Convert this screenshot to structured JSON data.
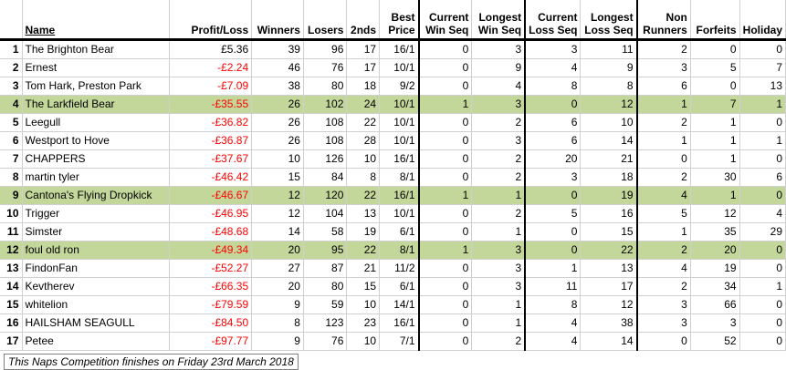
{
  "headers": {
    "rank": "",
    "name": "Name",
    "profit_loss": "Profit/Loss",
    "winners": "Winners",
    "losers": "Losers",
    "seconds": "2nds",
    "best_price": [
      "Best",
      "Price"
    ],
    "current_win_seq": [
      "Current",
      "Win Seq"
    ],
    "longest_win_seq": [
      "Longest",
      "Win Seq"
    ],
    "current_loss_seq": [
      "Current",
      "Loss Seq"
    ],
    "longest_loss_seq": [
      "Longest",
      "Loss Seq"
    ],
    "non_runners": [
      "Non",
      "Runners"
    ],
    "forfeits": "Forfeits",
    "holiday": "Holiday"
  },
  "rows": [
    {
      "rank": "1",
      "name": "The Brighton Bear",
      "pl": "£5.36",
      "neg": false,
      "w": "39",
      "l": "96",
      "s": "17",
      "bp": "16/1",
      "cws": "0",
      "lws": "3",
      "cls": "3",
      "lls": "11",
      "nr": "2",
      "f": "0",
      "h": "0",
      "hl": false
    },
    {
      "rank": "2",
      "name": "Ernest",
      "pl": "-£2.24",
      "neg": true,
      "w": "46",
      "l": "76",
      "s": "17",
      "bp": "10/1",
      "cws": "0",
      "lws": "9",
      "cls": "4",
      "lls": "9",
      "nr": "3",
      "f": "5",
      "h": "7",
      "hl": false
    },
    {
      "rank": "3",
      "name": "Tom Hark, Preston Park",
      "pl": "-£7.09",
      "neg": true,
      "w": "38",
      "l": "80",
      "s": "18",
      "bp": "9/2",
      "cws": "0",
      "lws": "4",
      "cls": "8",
      "lls": "8",
      "nr": "6",
      "f": "0",
      "h": "13",
      "hl": false
    },
    {
      "rank": "4",
      "name": "The Larkfield Bear",
      "pl": "-£35.55",
      "neg": true,
      "w": "26",
      "l": "102",
      "s": "24",
      "bp": "10/1",
      "cws": "1",
      "lws": "3",
      "cls": "0",
      "lls": "12",
      "nr": "1",
      "f": "7",
      "h": "1",
      "hl": true
    },
    {
      "rank": "5",
      "name": "Leegull",
      "pl": "-£36.82",
      "neg": true,
      "w": "26",
      "l": "108",
      "s": "22",
      "bp": "10/1",
      "cws": "0",
      "lws": "2",
      "cls": "6",
      "lls": "10",
      "nr": "2",
      "f": "1",
      "h": "0",
      "hl": false
    },
    {
      "rank": "6",
      "name": "Westport to Hove",
      "pl": "-£36.87",
      "neg": true,
      "w": "26",
      "l": "108",
      "s": "28",
      "bp": "10/1",
      "cws": "0",
      "lws": "3",
      "cls": "6",
      "lls": "14",
      "nr": "1",
      "f": "1",
      "h": "1",
      "hl": false
    },
    {
      "rank": "7",
      "name": "CHAPPERS",
      "pl": "-£37.67",
      "neg": true,
      "w": "10",
      "l": "126",
      "s": "10",
      "bp": "16/1",
      "cws": "0",
      "lws": "2",
      "cls": "20",
      "lls": "21",
      "nr": "0",
      "f": "1",
      "h": "0",
      "hl": false
    },
    {
      "rank": "8",
      "name": "martin tyler",
      "pl": "-£46.42",
      "neg": true,
      "w": "15",
      "l": "84",
      "s": "8",
      "bp": "8/1",
      "cws": "0",
      "lws": "2",
      "cls": "3",
      "lls": "18",
      "nr": "2",
      "f": "30",
      "h": "6",
      "hl": false
    },
    {
      "rank": "9",
      "name": "Cantona's Flying Dropkick",
      "pl": "-£46.67",
      "neg": true,
      "w": "12",
      "l": "120",
      "s": "22",
      "bp": "16/1",
      "cws": "1",
      "lws": "1",
      "cls": "0",
      "lls": "19",
      "nr": "4",
      "f": "1",
      "h": "0",
      "hl": true
    },
    {
      "rank": "10",
      "name": "Trigger",
      "pl": "-£46.95",
      "neg": true,
      "w": "12",
      "l": "104",
      "s": "13",
      "bp": "10/1",
      "cws": "0",
      "lws": "2",
      "cls": "5",
      "lls": "16",
      "nr": "5",
      "f": "12",
      "h": "4",
      "hl": false
    },
    {
      "rank": "11",
      "name": "Simster",
      "pl": "-£48.68",
      "neg": true,
      "w": "14",
      "l": "58",
      "s": "19",
      "bp": "6/1",
      "cws": "0",
      "lws": "1",
      "cls": "0",
      "lls": "15",
      "nr": "1",
      "f": "35",
      "h": "29",
      "hl": false
    },
    {
      "rank": "12",
      "name": "foul old ron",
      "pl": "-£49.34",
      "neg": true,
      "w": "20",
      "l": "95",
      "s": "22",
      "bp": "8/1",
      "cws": "1",
      "lws": "3",
      "cls": "0",
      "lls": "22",
      "nr": "2",
      "f": "20",
      "h": "0",
      "hl": true
    },
    {
      "rank": "13",
      "name": "FindonFan",
      "pl": "-£52.27",
      "neg": true,
      "w": "27",
      "l": "87",
      "s": "21",
      "bp": "11/2",
      "cws": "0",
      "lws": "3",
      "cls": "1",
      "lls": "13",
      "nr": "4",
      "f": "19",
      "h": "0",
      "hl": false
    },
    {
      "rank": "14",
      "name": "Kevtherev",
      "pl": "-£66.35",
      "neg": true,
      "w": "20",
      "l": "80",
      "s": "15",
      "bp": "6/1",
      "cws": "0",
      "lws": "3",
      "cls": "11",
      "lls": "17",
      "nr": "2",
      "f": "34",
      "h": "1",
      "hl": false
    },
    {
      "rank": "15",
      "name": "whitelion",
      "pl": "-£79.59",
      "neg": true,
      "w": "9",
      "l": "59",
      "s": "10",
      "bp": "14/1",
      "cws": "0",
      "lws": "1",
      "cls": "8",
      "lls": "12",
      "nr": "3",
      "f": "66",
      "h": "0",
      "hl": false
    },
    {
      "rank": "16",
      "name": "HAILSHAM SEAGULL",
      "pl": "-£84.50",
      "neg": true,
      "w": "8",
      "l": "123",
      "s": "23",
      "bp": "16/1",
      "cws": "0",
      "lws": "1",
      "cls": "4",
      "lls": "38",
      "nr": "3",
      "f": "3",
      "h": "0",
      "hl": false
    },
    {
      "rank": "17",
      "name": "Petee",
      "pl": "-£97.77",
      "neg": true,
      "w": "9",
      "l": "76",
      "s": "10",
      "bp": "7/1",
      "cws": "0",
      "lws": "2",
      "cls": "4",
      "lls": "14",
      "nr": "0",
      "f": "52",
      "h": "0",
      "hl": false
    }
  ],
  "caption": "This Naps Competition finishes on Friday 23rd March 2018",
  "colors": {
    "highlight": "#c4d79b",
    "negative": "#ff0000"
  }
}
